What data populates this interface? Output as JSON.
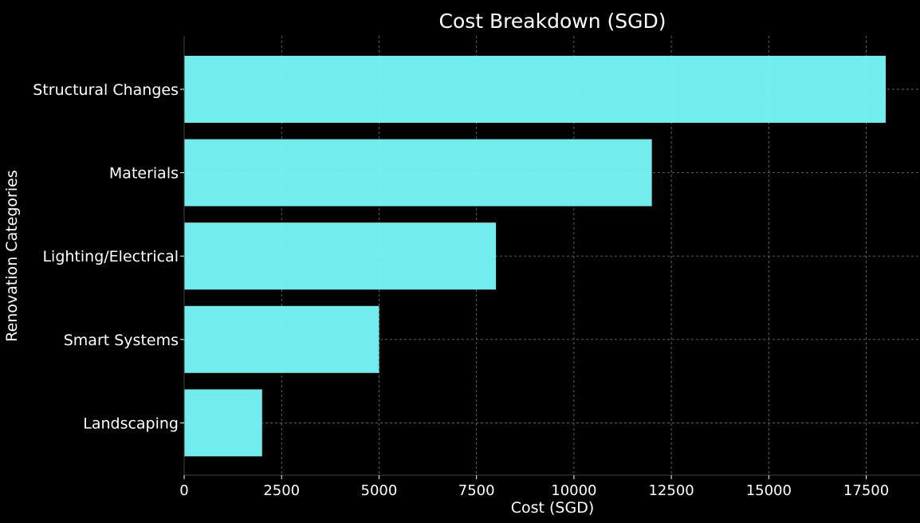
{
  "chart_data": {
    "type": "bar",
    "orientation": "horizontal",
    "title": "Cost Breakdown (SGD)",
    "xlabel": "Cost (SGD)",
    "ylabel": "Renovation Categories",
    "categories": [
      "Structural Changes",
      "Materials",
      "Lighting/Electrical",
      "Smart Systems",
      "Landscaping"
    ],
    "values": [
      18000,
      12000,
      8000,
      5000,
      2000
    ],
    "xlim": [
      0,
      18900
    ],
    "xticks": [
      0,
      2500,
      5000,
      7500,
      10000,
      12500,
      15000,
      17500
    ],
    "grid": true,
    "legend": "none"
  },
  "colors": {
    "background": "#000000",
    "bar": "#7affff",
    "grid": "#6a6a6a",
    "text": "#ffffff",
    "axis": "#444444"
  }
}
